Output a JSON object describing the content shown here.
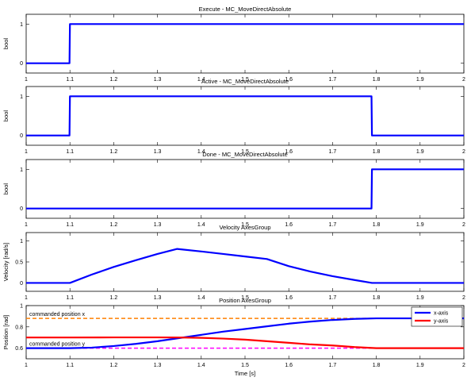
{
  "chart_data": [
    {
      "type": "line",
      "title": "Execute - MC_MoveDirectAbsolute",
      "xlabel": "",
      "ylabel": "bool",
      "xlim": [
        1,
        2
      ],
      "ylim": [
        -0.25,
        1.25
      ],
      "xticks": [
        1,
        1.1,
        1.2,
        1.3,
        1.4,
        1.5,
        1.6,
        1.7,
        1.8,
        1.9,
        2
      ],
      "xtick_labels": [
        "1",
        "1.1",
        "1.2",
        "1.3",
        "1.4",
        "1.5",
        "1.6",
        "1.7",
        "1.8",
        "1.9",
        "2"
      ],
      "yticks": [
        0,
        1
      ],
      "ytick_labels": [
        "0",
        "1"
      ],
      "grid": false,
      "series": [
        {
          "color": "#0000ff",
          "x": [
            1,
            1.099,
            1.1,
            2
          ],
          "y": [
            0,
            0,
            1,
            1
          ]
        }
      ]
    },
    {
      "type": "line",
      "title": "Active - MC_MoveDirectAbsolute",
      "xlabel": "",
      "ylabel": "bool",
      "xlim": [
        1,
        2
      ],
      "ylim": [
        -0.25,
        1.25
      ],
      "xticks": [
        1,
        1.1,
        1.2,
        1.3,
        1.4,
        1.5,
        1.6,
        1.7,
        1.8,
        1.9,
        2
      ],
      "xtick_labels": [
        "1",
        "1.1",
        "1.2",
        "1.3",
        "1.4",
        "1.5",
        "1.6",
        "1.7",
        "1.8",
        "1.9",
        "2"
      ],
      "yticks": [
        0,
        1
      ],
      "ytick_labels": [
        "0",
        "1"
      ],
      "grid": false,
      "series": [
        {
          "color": "#0000ff",
          "x": [
            1,
            1.099,
            1.1,
            1.789,
            1.79,
            2
          ],
          "y": [
            0,
            0,
            1,
            1,
            0,
            0
          ]
        }
      ]
    },
    {
      "type": "line",
      "title": "Done - MC_MoveDirectAbsolute",
      "xlabel": "",
      "ylabel": "bool",
      "xlim": [
        1,
        2
      ],
      "ylim": [
        -0.25,
        1.25
      ],
      "xticks": [
        1,
        1.1,
        1.2,
        1.3,
        1.4,
        1.5,
        1.6,
        1.7,
        1.8,
        1.9,
        2
      ],
      "xtick_labels": [
        "1",
        "1.1",
        "1.2",
        "1.3",
        "1.4",
        "1.5",
        "1.6",
        "1.7",
        "1.8",
        "1.9",
        "2"
      ],
      "yticks": [
        0,
        1
      ],
      "ytick_labels": [
        "0",
        "1"
      ],
      "grid": false,
      "series": [
        {
          "color": "#0000ff",
          "x": [
            1,
            1.789,
            1.79,
            2
          ],
          "y": [
            0,
            0,
            1,
            1
          ]
        }
      ]
    },
    {
      "type": "line",
      "title": "Velocity AxesGroup",
      "xlabel": "",
      "ylabel": "Velocity [rad/s]",
      "xlim": [
        1,
        2
      ],
      "ylim": [
        -0.2,
        1.2
      ],
      "xticks": [
        1,
        1.1,
        1.2,
        1.3,
        1.4,
        1.5,
        1.6,
        1.7,
        1.8,
        1.9,
        2
      ],
      "xtick_labels": [
        "1",
        "1.1",
        "1.2",
        "1.3",
        "1.4",
        "1.5",
        "1.6",
        "1.7",
        "1.8",
        "1.9",
        "2"
      ],
      "yticks": [
        0,
        0.5,
        1
      ],
      "ytick_labels": [
        "0",
        "0.5",
        "1"
      ],
      "grid": false,
      "series": [
        {
          "color": "#0000ff",
          "x": [
            1,
            1.1,
            1.15,
            1.2,
            1.25,
            1.3,
            1.345,
            1.4,
            1.45,
            1.5,
            1.55,
            1.6,
            1.65,
            1.7,
            1.75,
            1.79,
            1.85,
            1.9,
            2
          ],
          "y": [
            0,
            0,
            0.2,
            0.38,
            0.54,
            0.69,
            0.81,
            0.75,
            0.69,
            0.63,
            0.57,
            0.4,
            0.27,
            0.16,
            0.07,
            0,
            0,
            0,
            0
          ]
        }
      ]
    },
    {
      "type": "line",
      "title": "Position AxesGroup",
      "xlabel": "Time [s]",
      "ylabel": "Position [rad]",
      "xlim": [
        1,
        2
      ],
      "ylim": [
        0.5,
        1
      ],
      "xticks": [
        1,
        1.1,
        1.2,
        1.3,
        1.4,
        1.5,
        1.6,
        1.7,
        1.8,
        1.9,
        2
      ],
      "xtick_labels": [
        "1",
        "1.1",
        "1.2",
        "1.3",
        "1.4",
        "1.5",
        "1.6",
        "1.7",
        "1.8",
        "1.9",
        "2"
      ],
      "yticks": [
        0.6,
        0.8,
        1
      ],
      "ytick_labels": [
        "0.6",
        "0.8",
        "1"
      ],
      "grid": false,
      "legend": {
        "position": "top-right",
        "entries": [
          "x-axis",
          "y-axis"
        ]
      },
      "series": [
        {
          "name": "x-axis",
          "color": "#0000ff",
          "x": [
            1,
            1.1,
            1.15,
            1.2,
            1.25,
            1.3,
            1.35,
            1.4,
            1.45,
            1.5,
            1.55,
            1.6,
            1.65,
            1.7,
            1.75,
            1.8,
            1.9,
            2
          ],
          "y": [
            0.6,
            0.6,
            0.605,
            0.62,
            0.64,
            0.665,
            0.695,
            0.725,
            0.755,
            0.78,
            0.805,
            0.83,
            0.85,
            0.865,
            0.875,
            0.88,
            0.88,
            0.88
          ]
        },
        {
          "name": "y-axis",
          "color": "#ff0000",
          "x": [
            1,
            1.1,
            1.2,
            1.3,
            1.35,
            1.4,
            1.45,
            1.5,
            1.55,
            1.6,
            1.65,
            1.7,
            1.75,
            1.8,
            1.9,
            2
          ],
          "y": [
            0.7,
            0.7,
            0.701,
            0.701,
            0.7,
            0.697,
            0.69,
            0.68,
            0.665,
            0.65,
            0.635,
            0.625,
            0.61,
            0.6,
            0.6,
            0.6
          ]
        }
      ],
      "reference_lines": [
        {
          "label": "commanded position x",
          "y": 0.88,
          "color": "#ff8000",
          "style": "dashed"
        },
        {
          "label": "commanded position y",
          "y": 0.6,
          "color": "#ff00ff",
          "style": "dashed"
        }
      ]
    }
  ]
}
